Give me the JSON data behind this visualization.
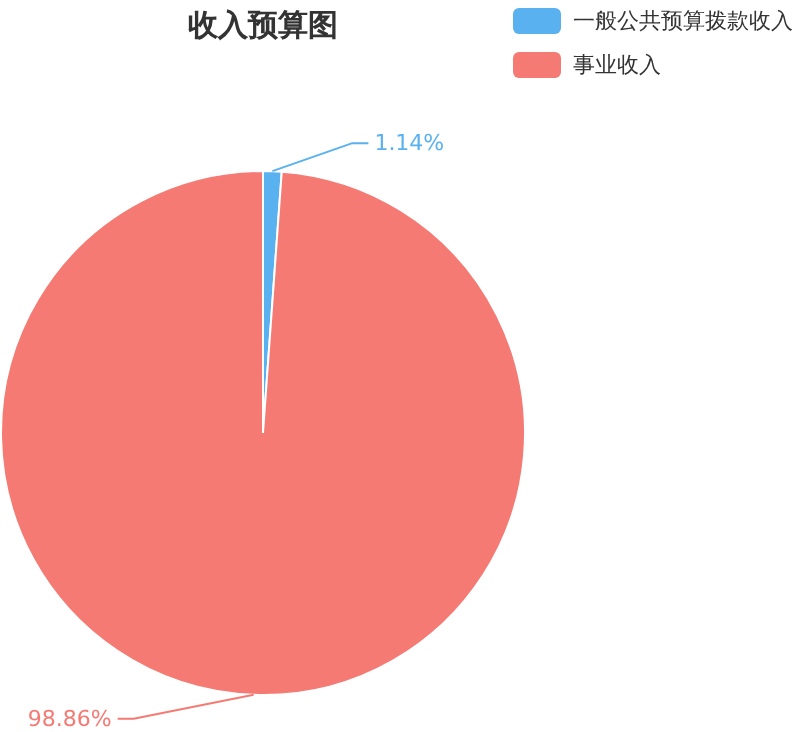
{
  "chart_data": {
    "type": "pie",
    "title": "收入预算图",
    "categories": [
      "一般公共预算拨款收入",
      "事业收入"
    ],
    "values": [
      1.14,
      98.86
    ],
    "colors": [
      "#5ab1ef",
      "#f57a73"
    ],
    "value_labels": [
      "1.14%",
      "98.86%"
    ],
    "legend": "top right"
  }
}
